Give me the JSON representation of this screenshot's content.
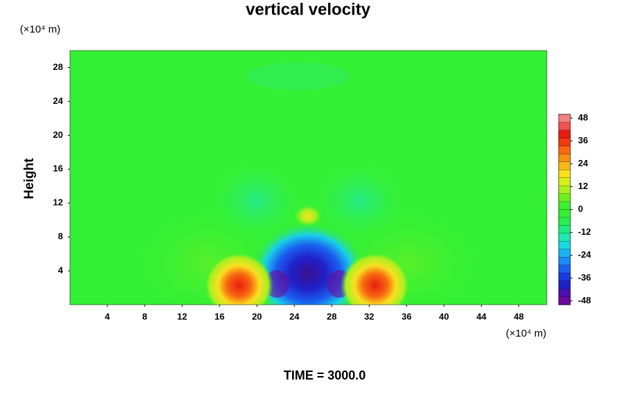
{
  "chart_data": {
    "type": "contour",
    "title": "vertical velocity",
    "y_label": "Height",
    "y_unit": "(×10⁴ m)",
    "x_unit": "(×10⁴ m)",
    "footer": "TIME = 3000.0",
    "xlim": [
      0,
      51
    ],
    "xticks": [
      4,
      8,
      12,
      16,
      20,
      24,
      28,
      32,
      36,
      40,
      44,
      48
    ],
    "ylim": [
      0,
      30
    ],
    "yticks": [
      4,
      8,
      12,
      16,
      20,
      24,
      28
    ],
    "clim": [
      -50,
      50
    ],
    "cticks": [
      48,
      36,
      24,
      12,
      0,
      -12,
      -24,
      -36,
      -48
    ],
    "colormap": [
      "#6a0a9a",
      "#4a10b0",
      "#2020c8",
      "#1a3ae0",
      "#1a60f0",
      "#1a8cf5",
      "#1ab4f0",
      "#1ad8e0",
      "#20e8b0",
      "#20ec80",
      "#28ee50",
      "#34f034",
      "#3cf030",
      "#70f020",
      "#a8f020",
      "#d8f020",
      "#f8e020",
      "#f8b818",
      "#f89010",
      "#f86810",
      "#f03c10",
      "#e81c10",
      "#f05050",
      "#f48080"
    ]
  }
}
